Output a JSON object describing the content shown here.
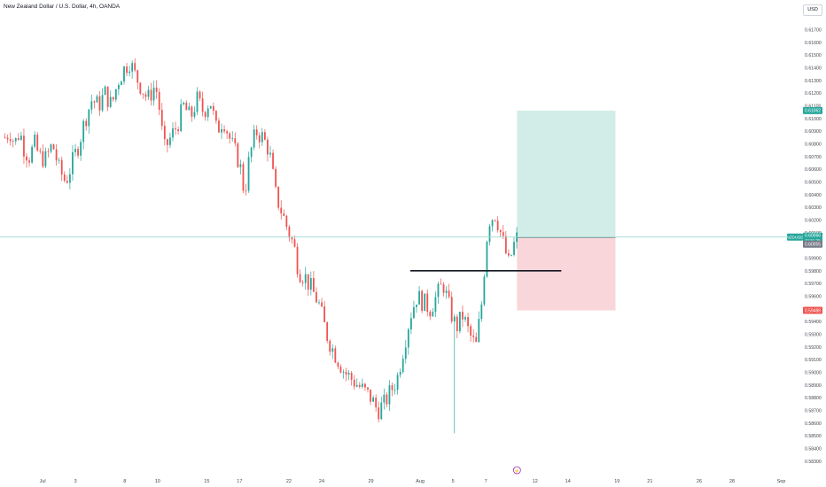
{
  "header": {
    "title": "New Zealand Dollar / U.S. Dollar, 4h, OANDA",
    "currency": "USD"
  },
  "colors": {
    "up": "#26a69a",
    "down": "#ef5350",
    "target_zone": "#d2ede8",
    "stop_zone": "#f9d6d9",
    "level_line": "#131722",
    "price_line": "#9fdbd3",
    "axis_text": "#434651"
  },
  "chart_data": {
    "type": "candlestick",
    "symbol": "NZDUSD",
    "timeframe": "4h",
    "y_axis": {
      "ticks": [
        "0.61700",
        "0.61600",
        "0.61500",
        "0.61400",
        "0.61300",
        "0.61200",
        "0.61100",
        "0.61000",
        "0.60900",
        "0.60800",
        "0.60700",
        "0.60600",
        "0.60500",
        "0.60400",
        "0.60300",
        "0.60200",
        "0.60100",
        "0.60000",
        "0.59900",
        "0.59800",
        "0.59700",
        "0.59600",
        "0.59500",
        "0.59400",
        "0.59300",
        "0.59200",
        "0.59100",
        "0.59000",
        "0.58900",
        "0.58800",
        "0.58700",
        "0.58600",
        "0.58500",
        "0.58400",
        "0.58300"
      ],
      "range": [
        0.5825,
        0.6178
      ]
    },
    "x_axis": {
      "ticks": [
        {
          "label": "Jul",
          "t": 0
        },
        {
          "label": "3",
          "t": 2
        },
        {
          "label": "8",
          "t": 5
        },
        {
          "label": "10",
          "t": 7
        },
        {
          "label": "15",
          "t": 10
        },
        {
          "label": "17",
          "t": 12
        },
        {
          "label": "22",
          "t": 15
        },
        {
          "label": "24",
          "t": 17
        },
        {
          "label": "29",
          "t": 20
        },
        {
          "label": "Aug",
          "t": 23
        },
        {
          "label": "5",
          "t": 25
        },
        {
          "label": "7",
          "t": 27
        },
        {
          "label": "12",
          "t": 30
        },
        {
          "label": "14",
          "t": 32
        },
        {
          "label": "19",
          "t": 35
        },
        {
          "label": "21",
          "t": 37
        },
        {
          "label": "26",
          "t": 40
        },
        {
          "label": "28",
          "t": 42
        },
        {
          "label": "Sep",
          "t": 45
        }
      ]
    },
    "candles_path": [
      [
        -2.3,
        0.6085
      ],
      [
        -2.0,
        0.609
      ],
      [
        -1.7,
        0.608
      ],
      [
        -1.4,
        0.609
      ],
      [
        -1.1,
        0.6075
      ],
      [
        -0.8,
        0.607
      ],
      [
        -0.5,
        0.608
      ],
      [
        -0.2,
        0.607
      ],
      [
        0.2,
        0.6068
      ],
      [
        0.6,
        0.608
      ],
      [
        1.0,
        0.606
      ],
      [
        1.4,
        0.605
      ],
      [
        1.8,
        0.6065
      ],
      [
        2.2,
        0.608
      ],
      [
        2.6,
        0.61
      ],
      [
        3.0,
        0.6115
      ],
      [
        3.4,
        0.611
      ],
      [
        3.8,
        0.612
      ],
      [
        4.2,
        0.611
      ],
      [
        4.6,
        0.613
      ],
      [
        5.0,
        0.614
      ],
      [
        5.3,
        0.6145
      ],
      [
        5.6,
        0.6135
      ],
      [
        6.0,
        0.6125
      ],
      [
        6.4,
        0.6115
      ],
      [
        6.8,
        0.6125
      ],
      [
        7.0,
        0.612
      ],
      [
        7.4,
        0.6075
      ],
      [
        7.8,
        0.6085
      ],
      [
        8.2,
        0.6095
      ],
      [
        8.6,
        0.611
      ],
      [
        9.0,
        0.61
      ],
      [
        9.4,
        0.6115
      ],
      [
        9.8,
        0.6105
      ],
      [
        10.2,
        0.6115
      ],
      [
        10.6,
        0.609
      ],
      [
        11.0,
        0.61
      ],
      [
        11.5,
        0.608
      ],
      [
        12.0,
        0.6065
      ],
      [
        12.3,
        0.604
      ],
      [
        12.6,
        0.607
      ],
      [
        13.0,
        0.609
      ],
      [
        13.4,
        0.6085
      ],
      [
        13.8,
        0.6075
      ],
      [
        14.2,
        0.604
      ],
      [
        14.6,
        0.6025
      ],
      [
        15.0,
        0.601
      ],
      [
        15.3,
        0.6
      ],
      [
        15.6,
        0.598
      ],
      [
        16.0,
        0.5975
      ],
      [
        16.4,
        0.5965
      ],
      [
        16.8,
        0.5955
      ],
      [
        17.0,
        0.5945
      ],
      [
        17.3,
        0.593
      ],
      [
        17.6,
        0.592
      ],
      [
        18.0,
        0.591
      ],
      [
        18.4,
        0.59
      ],
      [
        18.8,
        0.5895
      ],
      [
        19.2,
        0.589
      ],
      [
        19.6,
        0.5885
      ],
      [
        20.0,
        0.588
      ],
      [
        20.4,
        0.587
      ],
      [
        20.8,
        0.5875
      ],
      [
        21.2,
        0.5885
      ],
      [
        21.6,
        0.5895
      ],
      [
        22.0,
        0.592
      ],
      [
        22.4,
        0.5945
      ],
      [
        22.8,
        0.596
      ],
      [
        23.2,
        0.5955
      ],
      [
        23.6,
        0.595
      ],
      [
        24.0,
        0.596
      ],
      [
        24.4,
        0.597
      ],
      [
        24.8,
        0.595
      ],
      [
        25.2,
        0.5935
      ],
      [
        25.6,
        0.5945
      ],
      [
        26.0,
        0.593
      ],
      [
        26.4,
        0.592
      ],
      [
        26.8,
        0.596
      ],
      [
        27.0,
        0.6
      ],
      [
        27.2,
        0.602
      ],
      [
        27.6,
        0.6025
      ],
      [
        27.8,
        0.6015
      ],
      [
        28.0,
        0.6005
      ],
      [
        28.4,
        0.5985
      ],
      [
        28.7,
        0.6
      ],
      [
        28.9,
        0.6006
      ]
    ],
    "last_price": "0.60066",
    "countdown": "01:51:25",
    "prior_close": "0.60055",
    "annotations": [
      {
        "type": "horizontal_segment",
        "price": 0.598,
        "from_t": 22.4,
        "to_t": 31.6
      },
      {
        "type": "long_position",
        "entry": 0.6006,
        "target": 0.61062,
        "stop": 0.59488,
        "from_t": 28.9,
        "to_t": 34.9
      }
    ],
    "target_label": "0.61062",
    "stop_label": "0.59488",
    "event_marker": {
      "t": 28.9,
      "glyph": "⚡"
    }
  }
}
